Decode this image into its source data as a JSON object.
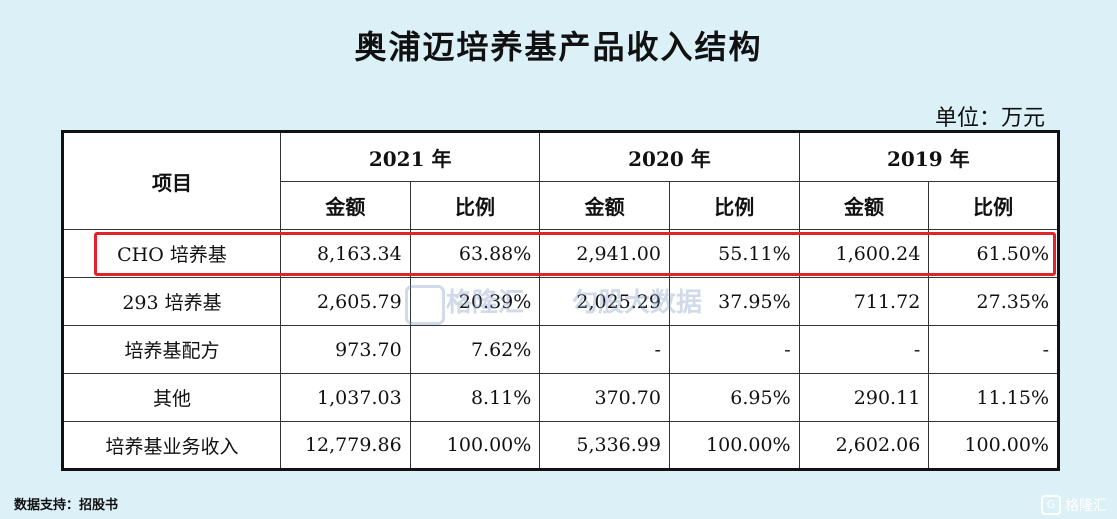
{
  "title": "奥浦迈培养基产品收入结构",
  "unit": "单位：万元",
  "source": "数据支持：招股书",
  "logo": "格隆汇",
  "logo_glyph": "G",
  "watermarks": {
    "left": "格隆汇",
    "right": "勾股大数据"
  },
  "chart_data": {
    "type": "table",
    "row_header": "项目",
    "years": [
      "2021 年",
      "2020 年",
      "2019 年"
    ],
    "sub_headers": [
      "金额",
      "比例"
    ],
    "highlighted_row": "CHO 培养基",
    "rows": [
      {
        "name": "CHO 培养基",
        "cells": [
          "8,163.34",
          "63.88%",
          "2,941.00",
          "55.11%",
          "1,600.24",
          "61.50%"
        ]
      },
      {
        "name": "293 培养基",
        "cells": [
          "2,605.79",
          "20.39%",
          "2,025.29",
          "37.95%",
          "711.72",
          "27.35%"
        ]
      },
      {
        "name": "培养基配方",
        "cells": [
          "973.70",
          "7.62%",
          "-",
          "-",
          "-",
          "-"
        ]
      },
      {
        "name": "其他",
        "cells": [
          "1,037.03",
          "8.11%",
          "370.70",
          "6.95%",
          "290.11",
          "11.15%"
        ]
      },
      {
        "name": "培养基业务收入",
        "cells": [
          "12,779.86",
          "100.00%",
          "5,336.99",
          "100.00%",
          "2,602.06",
          "100.00%"
        ]
      }
    ]
  },
  "colors": {
    "background": "#dcf0f8",
    "highlight": "#e0242a"
  }
}
